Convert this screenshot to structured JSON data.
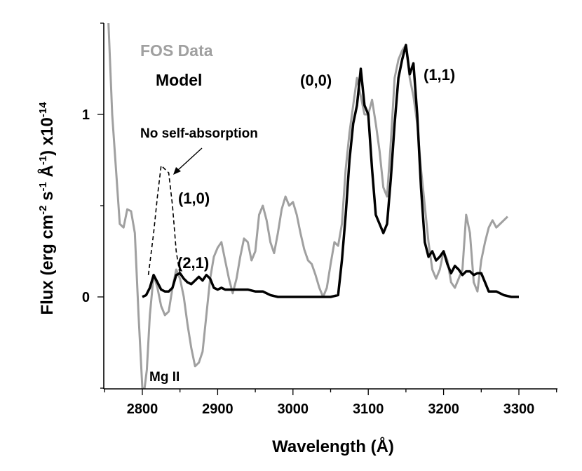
{
  "chart_data": {
    "type": "line",
    "xlabel": "Wavelength (Å)",
    "ylabel": {
      "base": "Flux (erg cm",
      "exp1": "-2",
      "mid1": " s",
      "exp2": "-1",
      "mid2": " Å",
      "exp3": "-1",
      "mid3": ") x10",
      "exp4": "-14"
    },
    "xlim": [
      2750,
      3350
    ],
    "ylim": [
      -0.5,
      1.5
    ],
    "x_ticks": [
      2800,
      2900,
      3000,
      3100,
      3200,
      3300
    ],
    "y_ticks": [
      0,
      1
    ],
    "x_tick_labels": [
      "2800",
      "2900",
      "3000",
      "3100",
      "3200",
      "3300"
    ],
    "y_tick_labels": [
      "0",
      "1"
    ],
    "legend": [
      {
        "name": "FOS Data",
        "color": "#a0a0a0"
      },
      {
        "name": "Model",
        "color": "#000000"
      }
    ],
    "annotations": {
      "mg2": "Mg II",
      "no_self_absorption": "No self-absorption",
      "band_00": "(0,0)",
      "band_11": "(1,1)",
      "band_10": "(1,0)",
      "band_21": "(2,1)"
    },
    "series": [
      {
        "name": "FOS Data",
        "color": "#a0a0a0",
        "style": "solid",
        "x": [
          2755,
          2760,
          2765,
          2770,
          2775,
          2780,
          2785,
          2790,
          2795,
          2800,
          2803,
          2806,
          2810,
          2815,
          2820,
          2825,
          2830,
          2835,
          2840,
          2845,
          2850,
          2855,
          2860,
          2865,
          2870,
          2875,
          2880,
          2885,
          2890,
          2895,
          2900,
          2905,
          2910,
          2915,
          2920,
          2925,
          2930,
          2935,
          2940,
          2945,
          2950,
          2955,
          2960,
          2965,
          2970,
          2975,
          2980,
          2985,
          2990,
          2995,
          3000,
          3005,
          3010,
          3015,
          3020,
          3025,
          3030,
          3035,
          3040,
          3045,
          3050,
          3055,
          3060,
          3065,
          3070,
          3075,
          3080,
          3085,
          3090,
          3095,
          3100,
          3105,
          3110,
          3115,
          3120,
          3125,
          3130,
          3135,
          3140,
          3145,
          3150,
          3155,
          3160,
          3165,
          3170,
          3175,
          3180,
          3185,
          3190,
          3195,
          3200,
          3205,
          3210,
          3215,
          3220,
          3225,
          3230,
          3235,
          3240,
          3245,
          3250,
          3255,
          3260,
          3265,
          3270,
          3275,
          3280,
          3285
        ],
        "y": [
          1.5,
          1.0,
          0.7,
          0.4,
          0.38,
          0.48,
          0.47,
          0.35,
          -0.1,
          -0.5,
          -0.5,
          -0.4,
          -0.1,
          0.12,
          0.05,
          -0.05,
          -0.1,
          -0.08,
          0.05,
          0.15,
          0.1,
          0.0,
          -0.15,
          -0.28,
          -0.38,
          -0.36,
          -0.3,
          -0.1,
          0.1,
          0.22,
          0.27,
          0.3,
          0.2,
          0.1,
          0.02,
          0.1,
          0.22,
          0.32,
          0.3,
          0.2,
          0.25,
          0.45,
          0.5,
          0.42,
          0.3,
          0.24,
          0.35,
          0.48,
          0.55,
          0.5,
          0.52,
          0.45,
          0.35,
          0.26,
          0.2,
          0.18,
          0.12,
          0.05,
          0.0,
          0.05,
          0.18,
          0.3,
          0.28,
          0.4,
          0.7,
          0.9,
          1.05,
          1.2,
          1.1,
          1.0,
          1.0,
          1.08,
          0.95,
          0.8,
          0.6,
          0.55,
          0.85,
          1.2,
          1.3,
          1.35,
          1.38,
          1.2,
          1.1,
          0.95,
          0.7,
          0.5,
          0.3,
          0.15,
          0.1,
          0.15,
          0.25,
          0.2,
          0.08,
          0.05,
          0.1,
          0.15,
          0.45,
          0.35,
          0.08,
          0.03,
          0.2,
          0.3,
          0.38,
          0.42,
          0.38,
          0.4,
          0.42,
          0.44
        ]
      },
      {
        "name": "Model",
        "color": "#000000",
        "style": "solid",
        "x": [
          2800,
          2805,
          2810,
          2815,
          2820,
          2825,
          2830,
          2835,
          2840,
          2845,
          2850,
          2855,
          2860,
          2865,
          2870,
          2875,
          2880,
          2885,
          2890,
          2895,
          2900,
          2905,
          2910,
          2920,
          2930,
          2940,
          2950,
          2960,
          2970,
          2980,
          2990,
          3000,
          3010,
          3020,
          3030,
          3040,
          3050,
          3060,
          3065,
          3070,
          3075,
          3080,
          3085,
          3090,
          3095,
          3100,
          3105,
          3110,
          3115,
          3120,
          3125,
          3130,
          3135,
          3140,
          3145,
          3150,
          3155,
          3160,
          3165,
          3170,
          3175,
          3180,
          3185,
          3190,
          3195,
          3200,
          3205,
          3210,
          3215,
          3220,
          3225,
          3230,
          3235,
          3240,
          3245,
          3250,
          3255,
          3260,
          3270,
          3280,
          3290,
          3300
        ],
        "y": [
          0.0,
          0.01,
          0.05,
          0.12,
          0.08,
          0.04,
          0.03,
          0.03,
          0.05,
          0.12,
          0.13,
          0.1,
          0.08,
          0.07,
          0.09,
          0.11,
          0.09,
          0.12,
          0.1,
          0.05,
          0.04,
          0.05,
          0.04,
          0.04,
          0.04,
          0.04,
          0.03,
          0.03,
          0.01,
          0.0,
          0.0,
          0.0,
          0.0,
          0.0,
          0.0,
          0.0,
          0.0,
          0.01,
          0.2,
          0.45,
          0.75,
          0.95,
          1.05,
          1.25,
          1.05,
          1.0,
          0.7,
          0.45,
          0.4,
          0.35,
          0.4,
          0.65,
          0.95,
          1.2,
          1.3,
          1.38,
          1.22,
          1.28,
          1.0,
          0.6,
          0.3,
          0.22,
          0.25,
          0.2,
          0.22,
          0.25,
          0.18,
          0.13,
          0.17,
          0.15,
          0.12,
          0.14,
          0.14,
          0.12,
          0.13,
          0.13,
          0.08,
          0.03,
          0.03,
          0.01,
          0.0,
          0.0
        ]
      },
      {
        "name": "No self-absorption",
        "color": "#000000",
        "style": "dashed",
        "x": [
          2808,
          2815,
          2820,
          2825,
          2830,
          2835,
          2840,
          2845,
          2850
        ],
        "y": [
          0.12,
          0.35,
          0.55,
          0.72,
          0.7,
          0.68,
          0.5,
          0.25,
          0.12
        ]
      }
    ]
  }
}
